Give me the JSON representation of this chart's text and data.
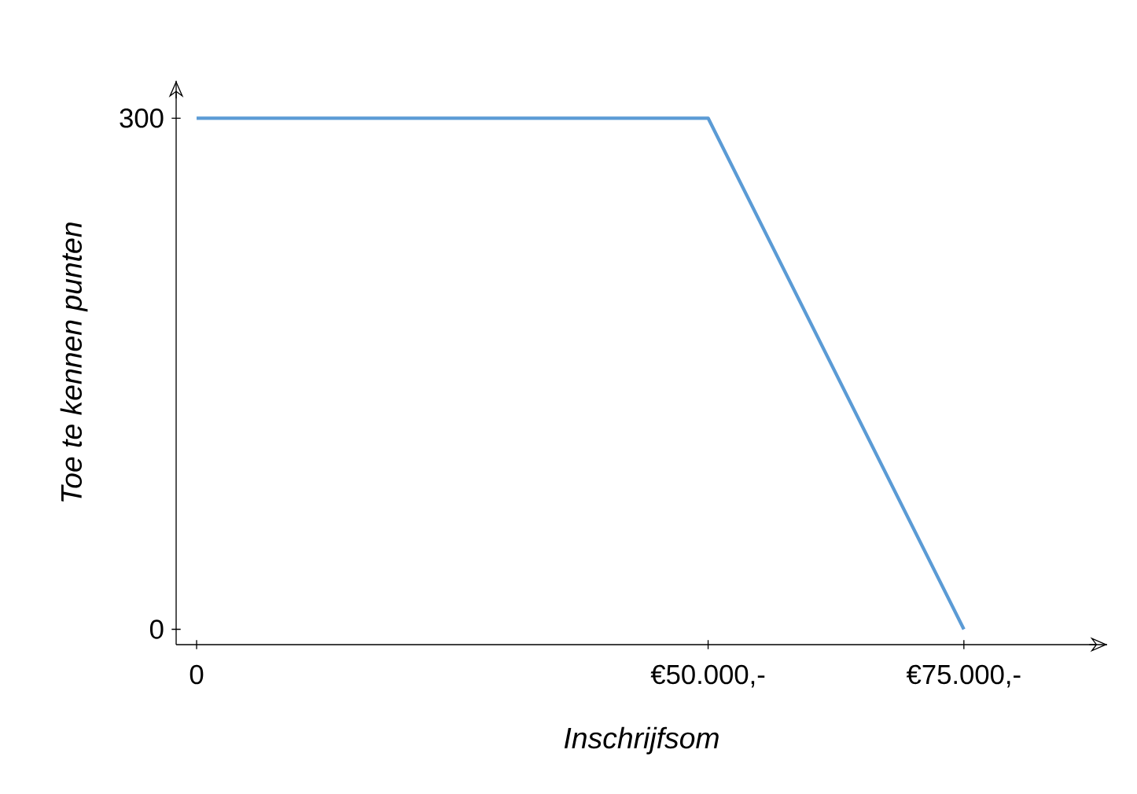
{
  "chart_data": {
    "type": "line",
    "xlabel": "Inschrijfsom",
    "ylabel": "Toe te kennen punten",
    "x": [
      0,
      50000,
      75000
    ],
    "series": [
      {
        "color": "#5b9bd5",
        "values": [
          300,
          300,
          0
        ]
      }
    ],
    "xlim": [
      -2000,
      89000
    ],
    "ylim": [
      -9,
      322
    ],
    "xticks": [
      0,
      {
        "value": 50000,
        "label": "€50.000,-"
      },
      {
        "value": 75000,
        "label": "€75.000,-"
      }
    ],
    "yticks": [
      0,
      300
    ]
  }
}
